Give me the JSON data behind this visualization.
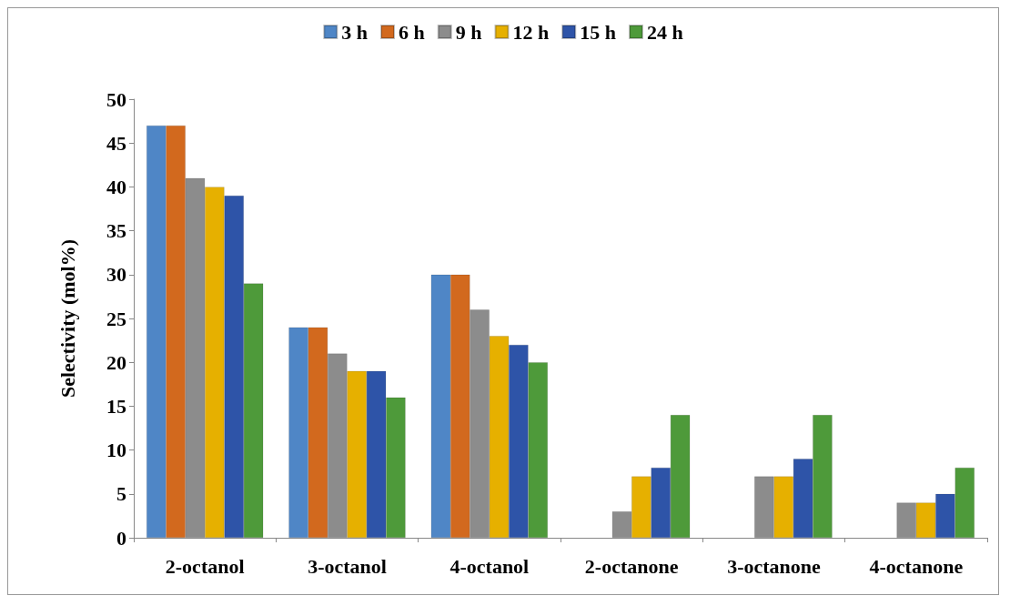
{
  "chart_data": {
    "type": "bar",
    "ylabel": "Selectivity (mol%)",
    "categories": [
      "2-octanol",
      "3-octanol",
      "4-octanol",
      "2-octanone",
      "3-octanone",
      "4-octanone"
    ],
    "series": [
      {
        "name": "3 h",
        "color": "#4f86c6",
        "values": [
          47,
          24,
          30,
          null,
          null,
          null
        ]
      },
      {
        "name": "6 h",
        "color": "#d2691e",
        "values": [
          47,
          24,
          30,
          null,
          null,
          null
        ]
      },
      {
        "name": "9 h",
        "color": "#8c8c8c",
        "values": [
          41,
          21,
          26,
          3,
          7,
          4
        ]
      },
      {
        "name": "12 h",
        "color": "#e6b000",
        "values": [
          40,
          19,
          23,
          7,
          7,
          4
        ]
      },
      {
        "name": "15 h",
        "color": "#2e54a8",
        "values": [
          39,
          19,
          22,
          8,
          9,
          5
        ]
      },
      {
        "name": "24 h",
        "color": "#4e9a3a",
        "values": [
          29,
          16,
          20,
          14,
          14,
          8
        ]
      }
    ],
    "ylim": [
      0,
      50
    ],
    "yticks": [
      0,
      5,
      10,
      15,
      20,
      25,
      30,
      35,
      40,
      45,
      50
    ],
    "grid": false,
    "legend": "top"
  }
}
